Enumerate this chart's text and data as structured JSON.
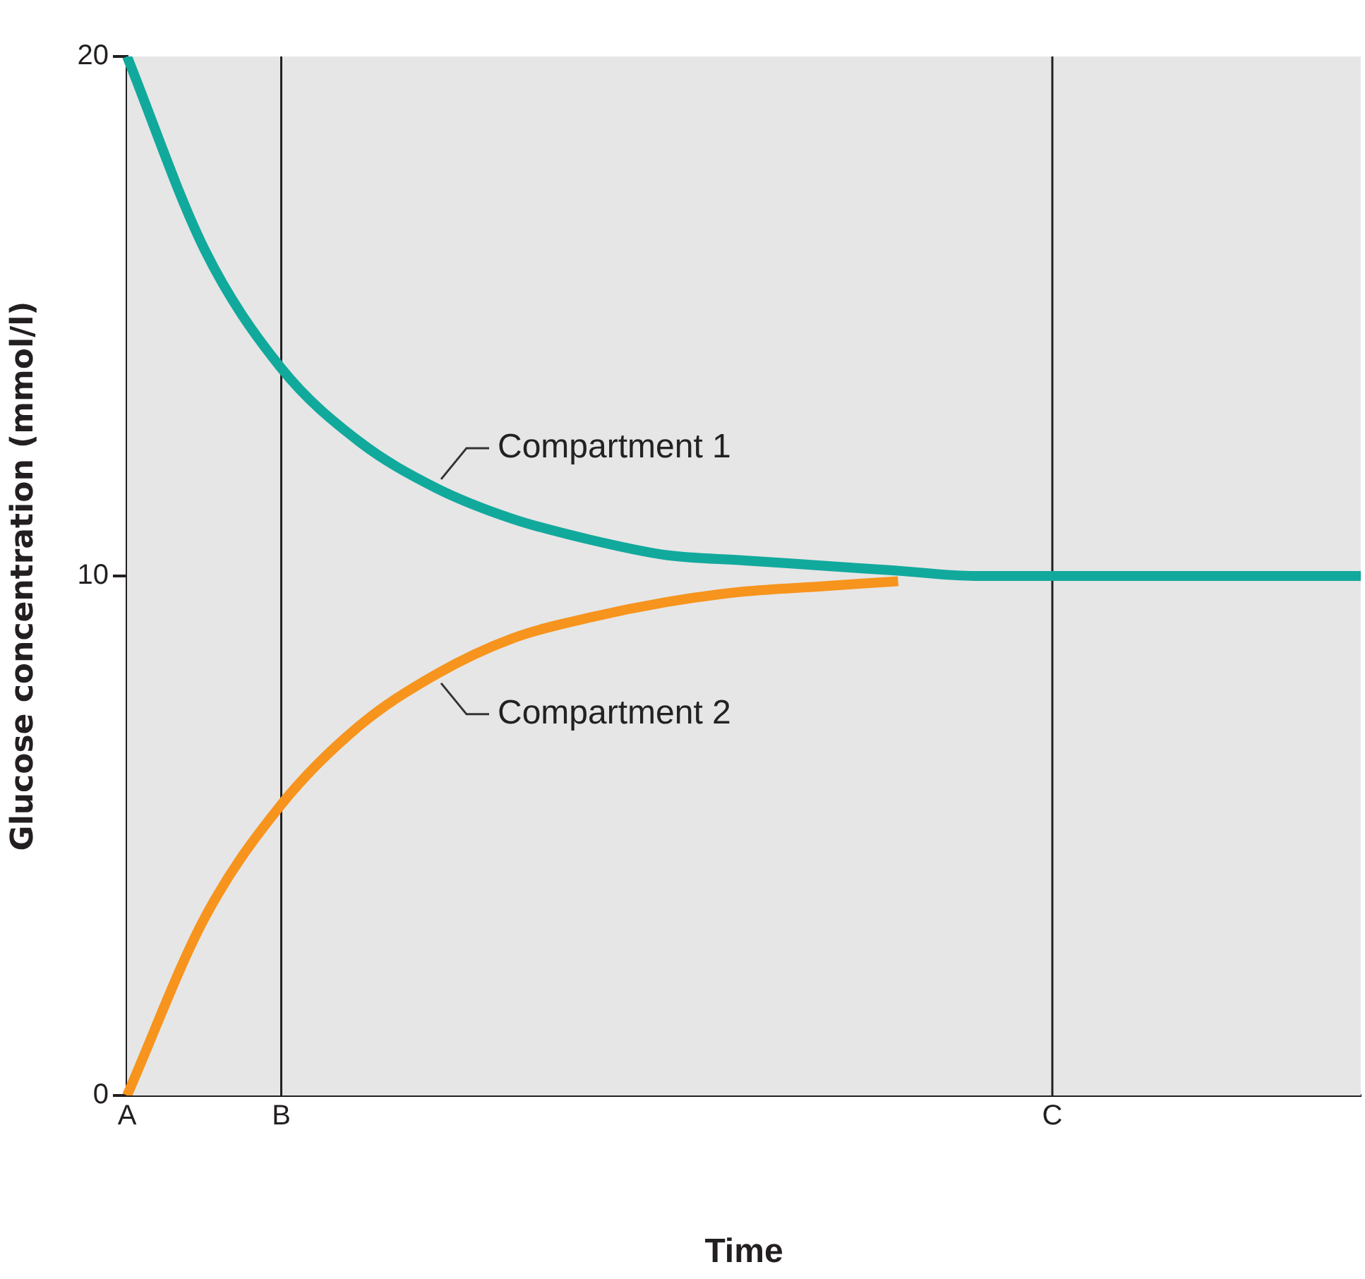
{
  "chart_data": {
    "type": "line",
    "xlabel": "Time",
    "ylabel": "Glucose concentration (mmol/l)",
    "categories": [
      "A",
      null,
      "B",
      null,
      null,
      null,
      null,
      null,
      null,
      null,
      null,
      null,
      "C",
      null,
      null,
      null,
      null
    ],
    "series": [
      {
        "name": "Compartment 1",
        "color": "#12a99d",
        "values": [
          20,
          16.3,
          14.0,
          12.6,
          11.7,
          11.1,
          10.7,
          10.4,
          10.3,
          10.2,
          10.1,
          10,
          10,
          10,
          10,
          10,
          10
        ]
      },
      {
        "name": "Compartment 2",
        "color": "#f7941d",
        "values": [
          0,
          3.4,
          5.6,
          7.1,
          8.1,
          8.8,
          9.2,
          9.5,
          9.7,
          9.8,
          9.9,
          null,
          null,
          null,
          null,
          null,
          null
        ]
      }
    ],
    "ylim": [
      0,
      20
    ],
    "yticks": [
      0,
      10,
      20
    ],
    "ref_lines": [
      {
        "axis": "x",
        "value": "B",
        "color": "#231f20"
      },
      {
        "axis": "x",
        "value": "C",
        "color": "#231f20"
      }
    ],
    "grid": false,
    "legend": false,
    "marker": "none",
    "line_style": "solid"
  }
}
